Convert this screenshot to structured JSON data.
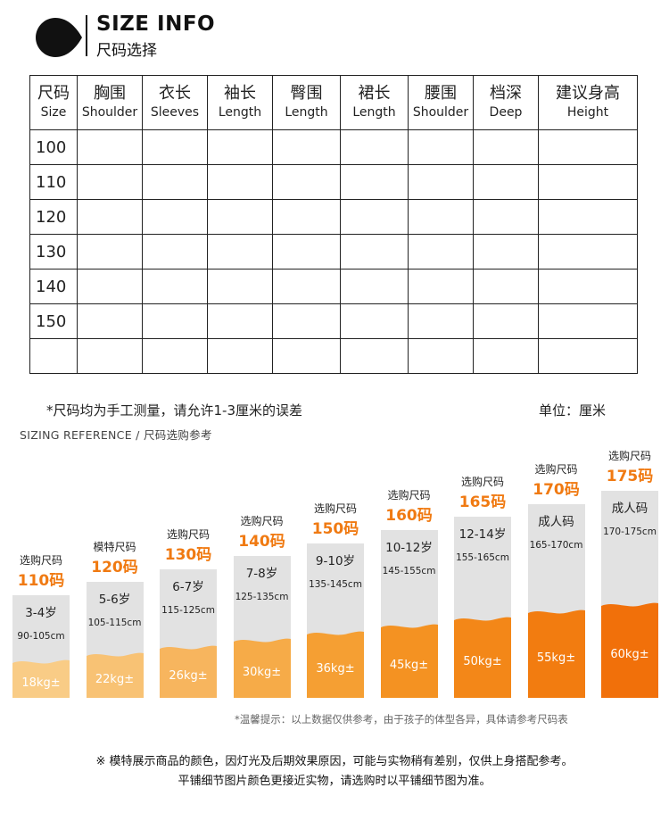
{
  "header": {
    "title_en": "SIZE INFO",
    "title_cn": "尺码选择"
  },
  "table": {
    "columns": [
      {
        "cn": "尺码",
        "en": "Size"
      },
      {
        "cn": "胸围",
        "en": "Shoulder"
      },
      {
        "cn": "衣长",
        "en": "Sleeves"
      },
      {
        "cn": "袖长",
        "en": "Length"
      },
      {
        "cn": "臀围",
        "en": "Length"
      },
      {
        "cn": "裙长",
        "en": "Length"
      },
      {
        "cn": "腰围",
        "en": "Shoulder"
      },
      {
        "cn": "档深",
        "en": "Deep"
      },
      {
        "cn": "建议身高",
        "en": "Height"
      }
    ],
    "rows": [
      "100",
      "110",
      "120",
      "130",
      "140",
      "150",
      ""
    ]
  },
  "notes": {
    "measure_note": "*尺码均为手工测量，请允许1-3厘米的误差",
    "unit": "单位：厘米",
    "reference_title": "SIZING REFERENCE / 尺码选购参考"
  },
  "reference": [
    {
      "label": "选购尺码",
      "code": "110码",
      "age": "3-4岁",
      "height": "90-105cm",
      "weight": "18kg±",
      "fill": "#f9cc86"
    },
    {
      "label": "模特尺码",
      "code": "120码",
      "age": "5-6岁",
      "height": "105-115cm",
      "weight": "22kg±",
      "fill": "#f8c274"
    },
    {
      "label": "选购尺码",
      "code": "130码",
      "age": "6-7岁",
      "height": "115-125cm",
      "weight": "26kg±",
      "fill": "#f7b55e"
    },
    {
      "label": "选购尺码",
      "code": "140码",
      "age": "7-8岁",
      "height": "125-135cm",
      "weight": "30kg±",
      "fill": "#f6ab48"
    },
    {
      "label": "选购尺码",
      "code": "150码",
      "age": "9-10岁",
      "height": "135-145cm",
      "weight": "36kg±",
      "fill": "#f59f33"
    },
    {
      "label": "选购尺码",
      "code": "160码",
      "age": "10-12岁",
      "height": "145-155cm",
      "weight": "45kg±",
      "fill": "#f49222"
    },
    {
      "label": "选购尺码",
      "code": "165码",
      "age": "12-14岁",
      "height": "155-165cm",
      "weight": "50kg±",
      "fill": "#f38718"
    },
    {
      "label": "选购尺码",
      "code": "170码",
      "age": "成人码",
      "height": "165-170cm",
      "weight": "55kg±",
      "fill": "#f27c10"
    },
    {
      "label": "选购尺码",
      "code": "175码",
      "age": "成人码",
      "height": "170-175cm",
      "weight": "60kg±",
      "fill": "#f1700a"
    }
  ],
  "colors": {
    "accent": "#f07a12",
    "bar_bg": "#e2e2e2"
  },
  "footer": {
    "tip": "*温馨提示：以上数据仅供参考，由于孩子的体型各异，具体请参考尺码表",
    "line1": "※ 模特展示商品的颜色，因灯光及后期效果原因，可能与实物稍有差别，仅供上身搭配参考。",
    "line2": "平铺细节图片颜色更接近实物，请选购时以平铺细节图为准。"
  }
}
